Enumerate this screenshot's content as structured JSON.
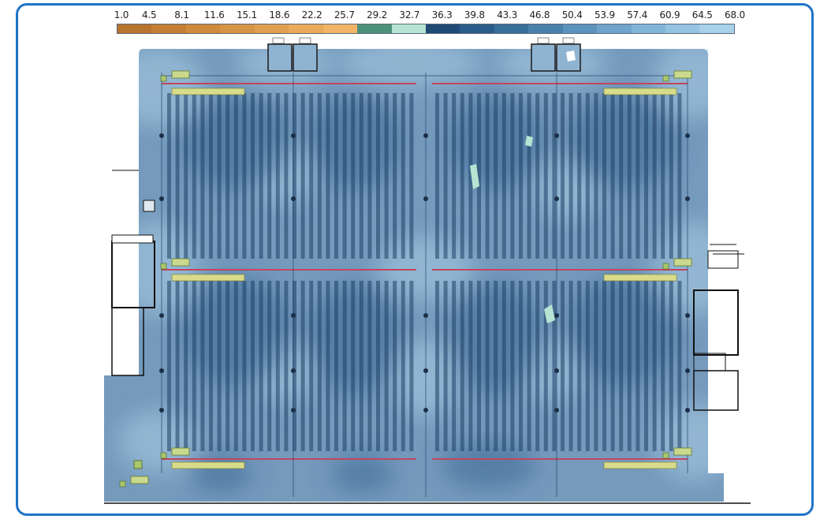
{
  "legend": {
    "ticks": [
      "1.0",
      "4.5",
      "8.1",
      "11.6",
      "15.1",
      "18.6",
      "22.2",
      "25.7",
      "29.2",
      "32.7",
      "36.3",
      "39.8",
      "43.3",
      "46.8",
      "50.4",
      "53.9",
      "57.4",
      "60.9",
      "64.5",
      "68.0"
    ],
    "colors": [
      "#b8732f",
      "#c47d33",
      "#cf8a3c",
      "#d69444",
      "#e0a050",
      "#eba95a",
      "#f2b466",
      "#4e917b",
      "#b7e4d2",
      "#1f4a76",
      "#2c5c89",
      "#3a6e9b",
      "#4b80ad",
      "#5d92bd",
      "#70a4cc",
      "#83b5d9",
      "#95c4e3",
      "#a8d1ea"
    ]
  },
  "rooms": [
    {
      "id": "top-room-left-1"
    },
    {
      "id": "top-room-left-2"
    },
    {
      "id": "top-room-right-1"
    },
    {
      "id": "top-room-right-2"
    }
  ],
  "heatmap": {
    "dominant_color": "#5d88b0",
    "strong_signal_color": "#3f6d98",
    "weak_spot_color": "#b7e4d2"
  }
}
